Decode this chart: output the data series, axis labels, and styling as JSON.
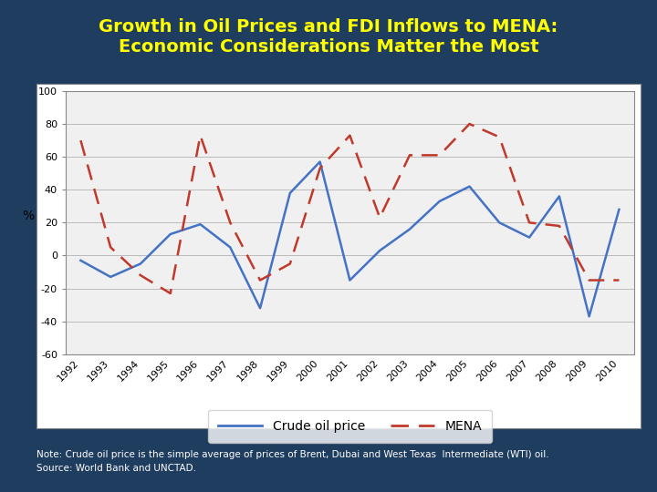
{
  "title_line1": "Growth in Oil Prices and FDI Inflows to MENA:",
  "title_line2": "Economic Considerations Matter the Most",
  "title_color": "#FFFF00",
  "background_color": "#1e3d5f",
  "chart_bg_color": "#f0f0f0",
  "years": [
    1992,
    1993,
    1994,
    1995,
    1996,
    1997,
    1998,
    1999,
    2000,
    2001,
    2002,
    2003,
    2004,
    2005,
    2006,
    2007,
    2008,
    2009,
    2010
  ],
  "crude_oil": [
    -3,
    -13,
    -5,
    13,
    19,
    5,
    -32,
    38,
    57,
    -15,
    3,
    16,
    33,
    42,
    20,
    11,
    36,
    -37,
    28
  ],
  "mena": [
    70,
    5,
    -12,
    -23,
    73,
    20,
    -15,
    -5,
    53,
    73,
    23,
    61,
    61,
    80,
    72,
    20,
    18,
    -15,
    -15
  ],
  "ylabel": "%",
  "ylim": [
    -60,
    100
  ],
  "yticks": [
    -60,
    -40,
    -20,
    0,
    20,
    40,
    60,
    80,
    100
  ],
  "crude_color": "#4472C4",
  "mena_color": "#C0392B",
  "legend_crude": "Crude oil price",
  "legend_mena": "MENA",
  "note_line1": "Note: Crude oil price is the simple average of prices of Brent, Dubai and West Texas  Intermediate (WTI) oil.",
  "note_line2": "Source: World Bank and UNCTAD.",
  "note_color": "#FFFFFF",
  "grid_color": "#bbbbbb",
  "tick_fontsize": 8,
  "ylabel_fontsize": 10,
  "title_fontsize": 14
}
